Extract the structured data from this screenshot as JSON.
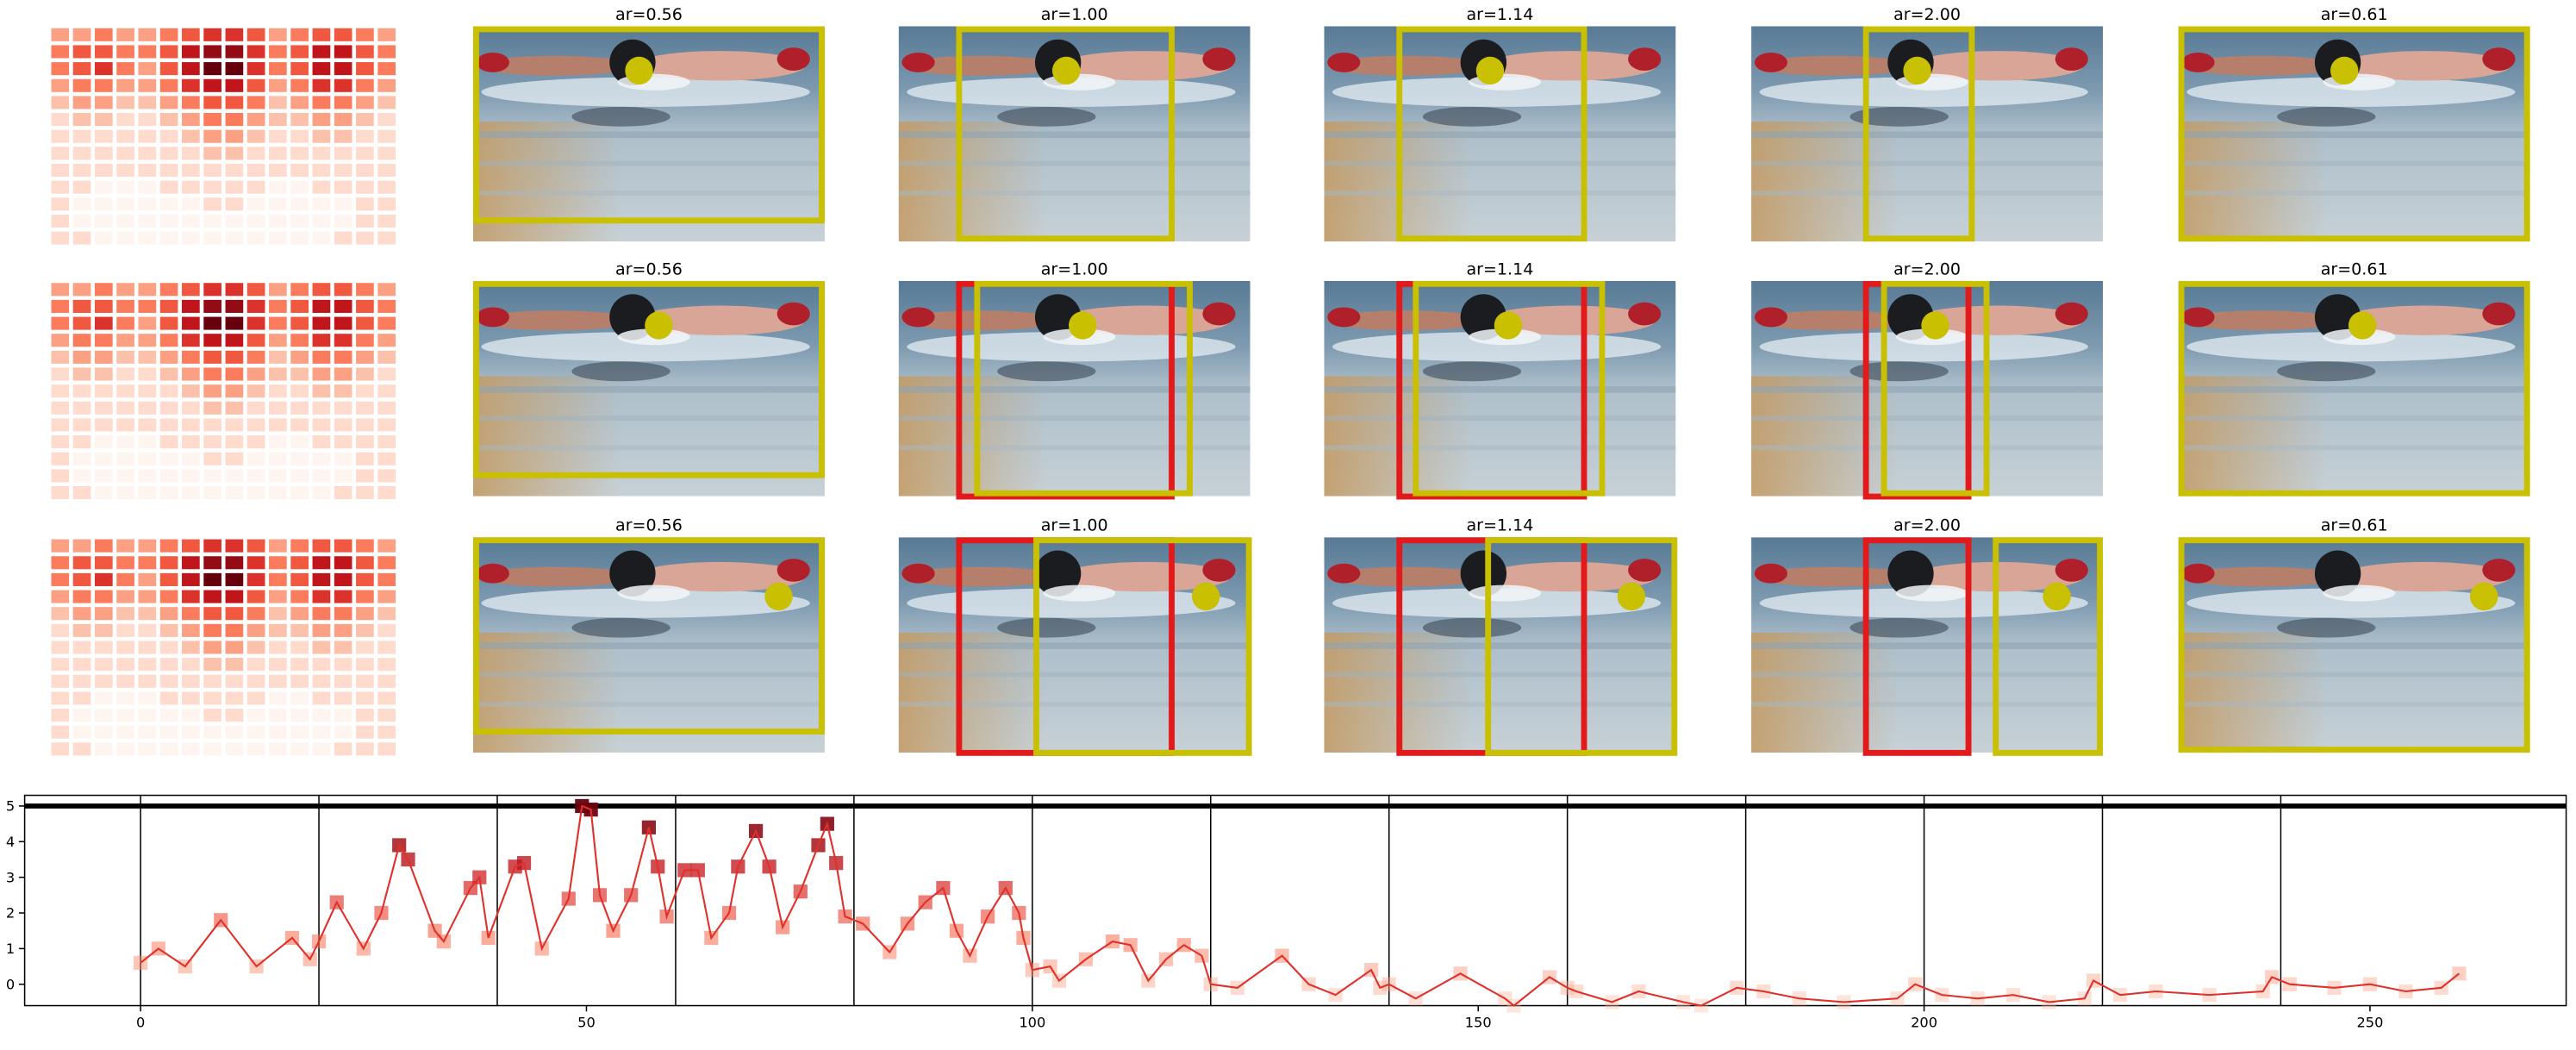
{
  "chart_data": [
    {
      "type": "heatmap",
      "colormap": "Reds",
      "values": [
        [
          3,
          3,
          4,
          3,
          3,
          4,
          5,
          6,
          6,
          5,
          3,
          4,
          5,
          5,
          4,
          3
        ],
        [
          4,
          5,
          5,
          4,
          4,
          5,
          7,
          8,
          8,
          6,
          4,
          5,
          7,
          7,
          5,
          4
        ],
        [
          4,
          5,
          6,
          4,
          3,
          5,
          7,
          9,
          9,
          6,
          4,
          5,
          7,
          7,
          5,
          4
        ],
        [
          3,
          4,
          4,
          3,
          3,
          4,
          6,
          7,
          7,
          5,
          3,
          4,
          6,
          6,
          4,
          3
        ],
        [
          2,
          3,
          3,
          2,
          2,
          3,
          4,
          5,
          5,
          4,
          2,
          3,
          4,
          4,
          3,
          2
        ],
        [
          1,
          2,
          2,
          1,
          1,
          2,
          3,
          4,
          4,
          3,
          2,
          2,
          3,
          3,
          2,
          1
        ],
        [
          1,
          1,
          1,
          1,
          1,
          1,
          2,
          3,
          3,
          2,
          1,
          1,
          2,
          2,
          1,
          1
        ],
        [
          1,
          1,
          1,
          1,
          1,
          1,
          1,
          2,
          2,
          1,
          1,
          1,
          1,
          1,
          1,
          1
        ],
        [
          1,
          1,
          1,
          1,
          1,
          1,
          1,
          1,
          1,
          1,
          1,
          1,
          1,
          1,
          1,
          1
        ],
        [
          1,
          1,
          0,
          0,
          0,
          1,
          1,
          1,
          1,
          1,
          0,
          0,
          1,
          1,
          1,
          1
        ],
        [
          1,
          0,
          0,
          0,
          0,
          0,
          0,
          1,
          1,
          0,
          0,
          0,
          0,
          0,
          1,
          1
        ],
        [
          1,
          0,
          0,
          0,
          0,
          0,
          0,
          0,
          0,
          0,
          0,
          0,
          0,
          0,
          1,
          1
        ],
        [
          1,
          1,
          0,
          0,
          0,
          0,
          0,
          0,
          0,
          0,
          0,
          0,
          0,
          1,
          1,
          1
        ]
      ],
      "vmin": 0,
      "vmax": 9
    },
    {
      "type": "line",
      "color": "#e0302a",
      "colormap": "Reds",
      "marker": "square",
      "x": [
        0,
        2,
        5,
        9,
        13,
        17,
        19,
        20,
        22,
        25,
        27,
        29,
        30,
        33,
        34,
        37,
        38,
        39,
        42,
        43,
        45,
        48,
        49.5,
        50.5,
        51.5,
        53,
        55,
        57,
        58,
        59,
        61,
        62.5,
        64,
        66,
        67,
        69,
        70.5,
        72,
        74,
        76,
        77,
        78,
        79,
        81,
        84,
        86,
        88,
        90,
        91.5,
        93,
        95,
        97,
        98.5,
        99,
        100,
        102,
        103,
        106,
        109,
        111,
        113,
        115,
        117,
        119,
        120,
        123,
        128,
        131,
        134,
        138,
        139,
        140,
        143,
        148,
        153,
        154,
        158,
        160,
        161,
        165,
        168,
        173,
        175,
        179,
        182,
        186,
        191,
        197,
        199,
        202,
        206,
        210,
        214,
        218,
        219,
        222,
        226,
        232,
        238,
        239,
        241,
        246,
        250,
        254,
        258,
        260
      ],
      "values": [
        0.6,
        1.0,
        0.5,
        1.8,
        0.5,
        1.3,
        0.7,
        1.2,
        2.3,
        1.0,
        2.0,
        3.9,
        3.5,
        1.5,
        1.2,
        2.7,
        3.0,
        1.3,
        3.3,
        3.4,
        1.0,
        2.4,
        5.0,
        4.9,
        2.5,
        1.5,
        2.5,
        4.4,
        3.3,
        1.9,
        3.2,
        3.2,
        1.3,
        2.0,
        3.3,
        4.3,
        3.3,
        1.6,
        2.6,
        3.9,
        4.5,
        3.4,
        1.9,
        1.7,
        0.9,
        1.7,
        2.3,
        2.7,
        1.5,
        0.8,
        1.9,
        2.7,
        2.0,
        1.3,
        0.4,
        0.5,
        0.1,
        0.7,
        1.2,
        1.1,
        0.1,
        0.7,
        1.1,
        0.8,
        0.0,
        -0.1,
        0.8,
        0.0,
        -0.3,
        0.4,
        -0.1,
        0.0,
        -0.4,
        0.3,
        -0.4,
        -0.6,
        0.2,
        -0.1,
        -0.2,
        -0.5,
        -0.2,
        -0.5,
        -0.6,
        -0.1,
        -0.2,
        -0.4,
        -0.5,
        -0.4,
        0.0,
        -0.3,
        -0.4,
        -0.3,
        -0.5,
        -0.4,
        0.1,
        -0.3,
        -0.2,
        -0.3,
        -0.2,
        0.2,
        0.0,
        -0.1,
        0.0,
        -0.2,
        -0.1,
        0.3
      ],
      "xlim": [
        -13,
        272
      ],
      "ylim": [
        -0.6,
        5.3
      ],
      "xticks": [
        0,
        50,
        100,
        150,
        200,
        250
      ],
      "yticks": [
        0,
        1,
        2,
        3,
        4,
        5
      ],
      "vlines": [
        0,
        20,
        40,
        60,
        80,
        100,
        120,
        140,
        160,
        180,
        200,
        220,
        240
      ],
      "hline": 5
    }
  ],
  "images": {
    "rows": [
      {
        "titles": [
          "ar=0.56",
          "ar=1.00",
          "ar=1.14",
          "ar=2.00",
          "ar=0.61"
        ]
      },
      {
        "titles": [
          "ar=0.56",
          "ar=1.00",
          "ar=1.14",
          "ar=2.00",
          "ar=0.61"
        ]
      },
      {
        "titles": [
          "ar=0.56",
          "ar=1.00",
          "ar=1.14",
          "ar=2.00",
          "ar=0.61"
        ]
      }
    ]
  }
}
